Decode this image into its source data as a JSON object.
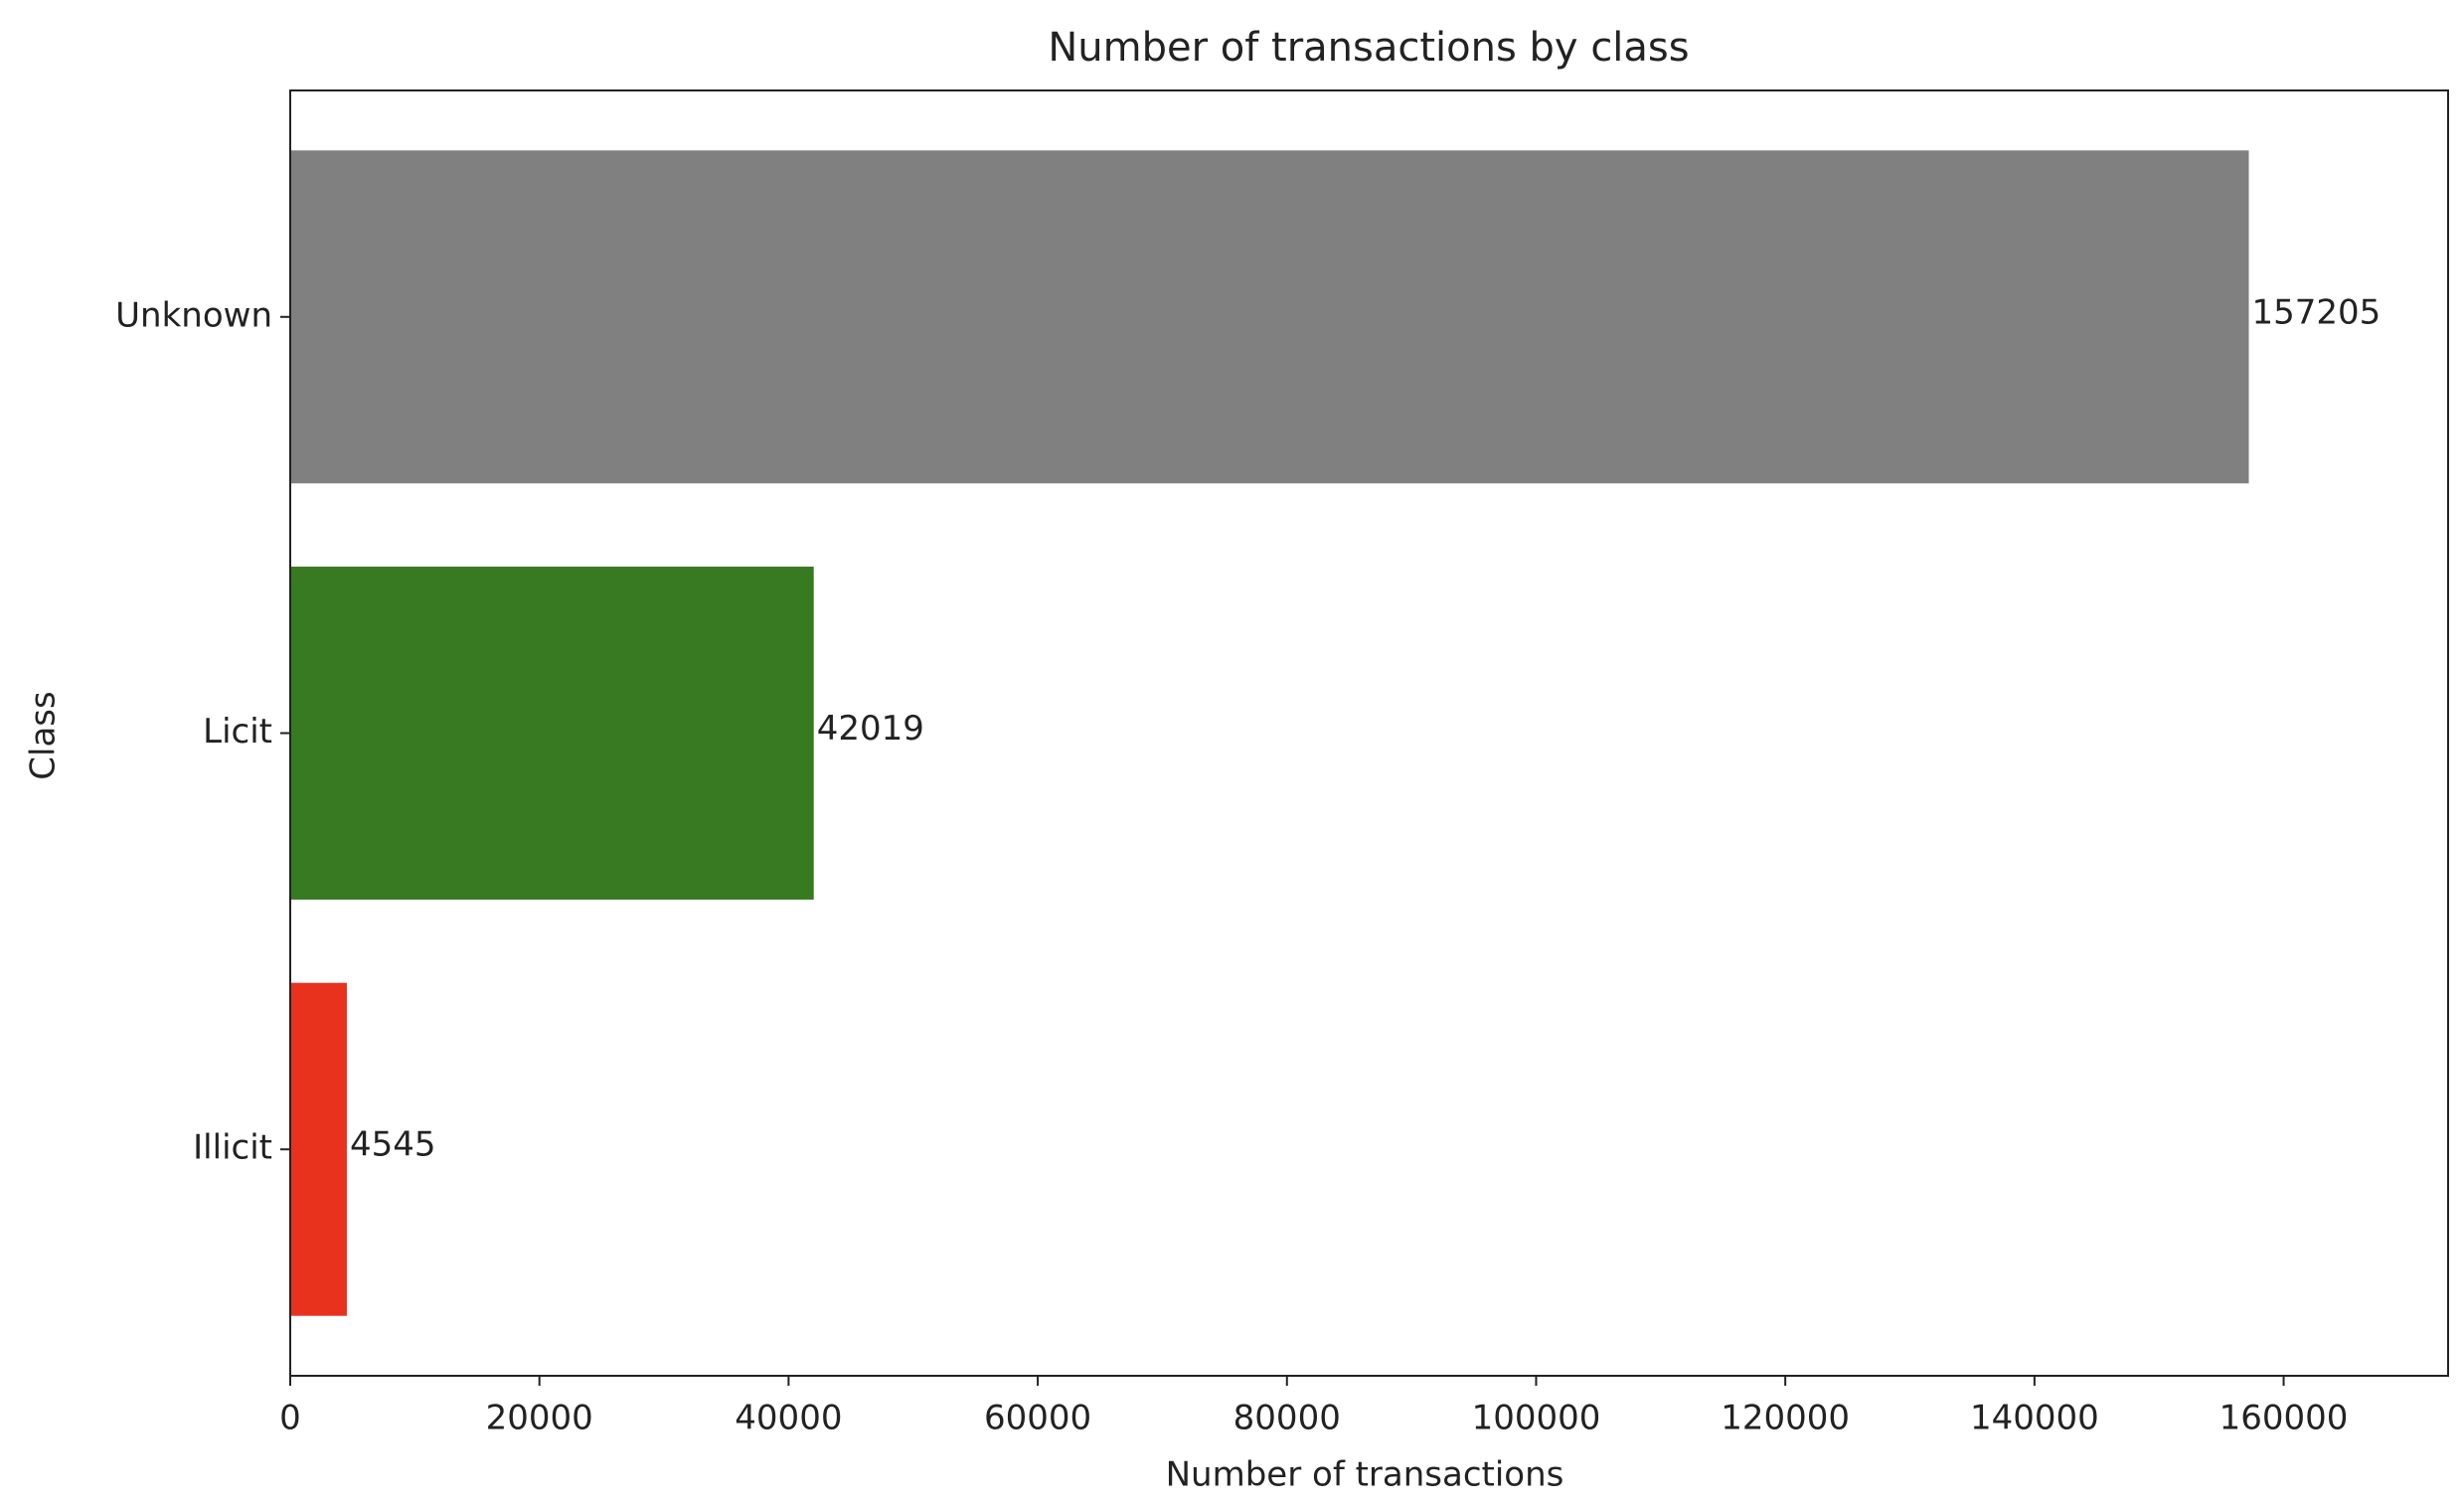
{
  "chart_data": {
    "type": "barh",
    "title": "Number of transactions by class",
    "x_label": "Number of transactions",
    "y_label": "Class",
    "categories": [
      "Unknown",
      "Licit",
      "Illicit"
    ],
    "values": [
      157205,
      42019,
      4545
    ],
    "colors": [
      "#808080",
      "#377a22",
      "#e8321e"
    ],
    "xlim": [
      0,
      173200
    ],
    "xticks": [
      0,
      20000,
      40000,
      60000,
      80000,
      100000,
      120000,
      140000,
      160000
    ],
    "grid": false
  }
}
